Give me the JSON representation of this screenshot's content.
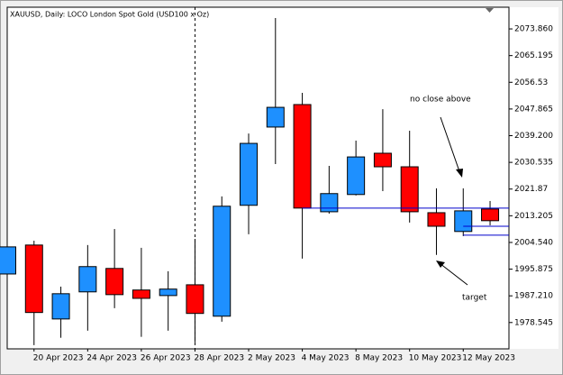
{
  "chart_data": {
    "type": "candlestick",
    "title": "XAUUSD, Daily:  LOCO London Spot Gold (USD100 x Oz)",
    "categories": [
      null,
      "20 Apr 2023",
      null,
      "24 Apr 2023",
      null,
      "26 Apr 2023",
      null,
      "28 Apr 2023",
      null,
      "2 May 2023",
      null,
      "4 May 2023",
      null,
      "8 May 2023",
      null,
      "10 May 2023",
      null,
      "12 May 2023",
      null
    ],
    "open": [
      1994.3,
      2003.7,
      1979.7,
      1988.5,
      1996.1,
      1989.1,
      1987.3,
      1990.8,
      1980.6,
      2016.6,
      2042.0,
      2049.3,
      2014.5,
      2020.1,
      2033.5,
      2029.1,
      2014.2,
      2008.1,
      2015.4
    ],
    "high": [
      2003.1,
      2005.1,
      1990.2,
      2003.7,
      2008.9,
      2002.8,
      1995.2,
      2005.7,
      2019.5,
      2039.9,
      2077.4,
      2053.1,
      2029.4,
      2037.6,
      2047.8,
      2040.8,
      2022.1,
      2022.1,
      2018.0
    ],
    "low": [
      1994.3,
      1971.2,
      1973.6,
      1975.9,
      1983.2,
      1973.9,
      1975.9,
      1972.1,
      1978.8,
      2007.2,
      2030.0,
      1999.3,
      2013.9,
      2019.8,
      2021.2,
      2011.0,
      2000.5,
      2006.6,
      2010.1
    ],
    "close": [
      2003.1,
      1981.8,
      1987.9,
      1996.7,
      1987.6,
      1986.4,
      1989.4,
      1981.5,
      2016.3,
      2036.7,
      2048.4,
      2015.7,
      2020.4,
      2032.3,
      2029.1,
      2014.5,
      2009.8,
      2014.8,
      2011.6
    ],
    "up_color": "#1e90ff",
    "down_color": "#ff0000",
    "ylim": [
      1970.0,
      2080.9
    ],
    "yticks": [
      {
        "value": 2073.86,
        "label": "2073.860"
      },
      2065.195,
      2056.53,
      2047.865,
      {
        "value": 2039.2,
        "label": "2039.200"
      },
      2030.535,
      2021.87,
      2013.205,
      {
        "value": 2004.54,
        "label": "2004.540"
      },
      1995.875,
      {
        "value": 1987.21,
        "label": "1987.210"
      },
      1978.545
    ],
    "levels": [
      2015.7,
      2009.8,
      2006.9
    ],
    "level_color": "#0000cc",
    "annotations": [
      "no close above",
      "target"
    ]
  }
}
